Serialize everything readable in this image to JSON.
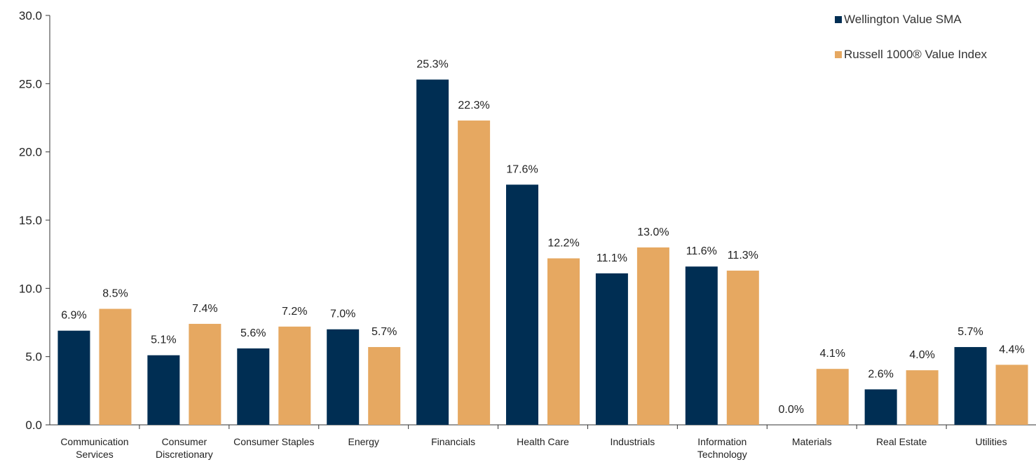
{
  "chart_data": {
    "type": "bar",
    "categories": [
      [
        "Communication",
        "Services"
      ],
      [
        "Consumer",
        "Discretionary"
      ],
      [
        "Consumer Staples"
      ],
      [
        "Energy"
      ],
      [
        "Financials"
      ],
      [
        "Health Care"
      ],
      [
        "Industrials"
      ],
      [
        "Information",
        "Technology"
      ],
      [
        "Materials"
      ],
      [
        "Real Estate"
      ],
      [
        "Utilities"
      ]
    ],
    "series": [
      {
        "name": "Wellington Value SMA",
        "color": "#002E53",
        "values": [
          6.9,
          5.1,
          5.6,
          7.0,
          25.3,
          17.6,
          11.1,
          11.6,
          0.0,
          2.6,
          5.7
        ],
        "labels": [
          "6.9%",
          "5.1%",
          "5.6%",
          "7.0%",
          "25.3%",
          "17.6%",
          "11.1%",
          "11.6%",
          "0.0%",
          "2.6%",
          "5.7%"
        ]
      },
      {
        "name": "Russell 1000® Value Index",
        "color": "#E6A861",
        "values": [
          8.5,
          7.4,
          7.2,
          5.7,
          22.3,
          12.2,
          13.0,
          11.3,
          4.1,
          4.0,
          4.4
        ],
        "labels": [
          "8.5%",
          "7.4%",
          "7.2%",
          "5.7%",
          "22.3%",
          "12.2%",
          "13.0%",
          "11.3%",
          "4.1%",
          "4.0%",
          "4.4%"
        ]
      }
    ],
    "yticks": [
      "0.0",
      "5.0",
      "10.0",
      "15.0",
      "20.0",
      "25.0",
      "30.0"
    ],
    "ylim": [
      0,
      30
    ],
    "legend_position": "top-right",
    "grid": false
  }
}
